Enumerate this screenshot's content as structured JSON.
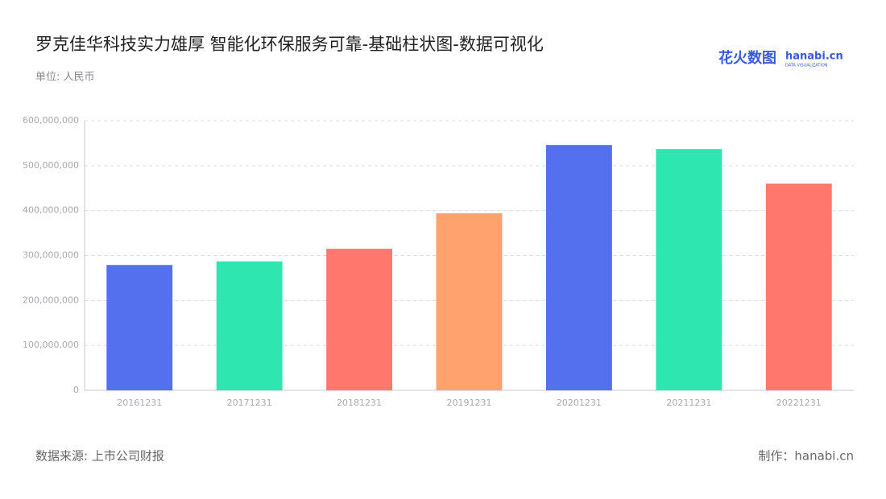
{
  "chart_data": {
    "type": "bar",
    "title": "罗克佳华科技实力雄厚  智能化环保服务可靠-基础柱状图-数据可视化",
    "subtitle": "单位: 人民币",
    "source": "数据来源: 上市公司财报",
    "credit": "制作：hanabi.cn",
    "logo": {
      "name": "花火数图",
      "brand": "hanabi.cn",
      "tagline": "DATA VISUALIZATION"
    },
    "categories": [
      "20161231",
      "20171231",
      "20181231",
      "20191231",
      "20201231",
      "20211231",
      "20221231"
    ],
    "values": [
      279000000,
      287000000,
      315000000,
      394000000,
      546000000,
      537000000,
      460000000
    ],
    "colors": [
      "#5470ef",
      "#2de6b0",
      "#ff776d",
      "#ffa26e",
      "#5470ef",
      "#2de6b0",
      "#ff776d"
    ],
    "ylim": [
      0,
      600000000
    ],
    "yticks": [
      0,
      {
        "value": 100000000,
        "label": "100,000,000"
      },
      {
        "value": 200000000,
        "label": "200,000,000"
      },
      {
        "value": 300000000,
        "label": "300,000,000"
      },
      {
        "value": 400000000,
        "label": "400,000,000"
      },
      {
        "value": 500000000,
        "label": "500,000,000"
      },
      {
        "value": 600000000,
        "label": "600,000,000"
      }
    ],
    "grid": true
  }
}
